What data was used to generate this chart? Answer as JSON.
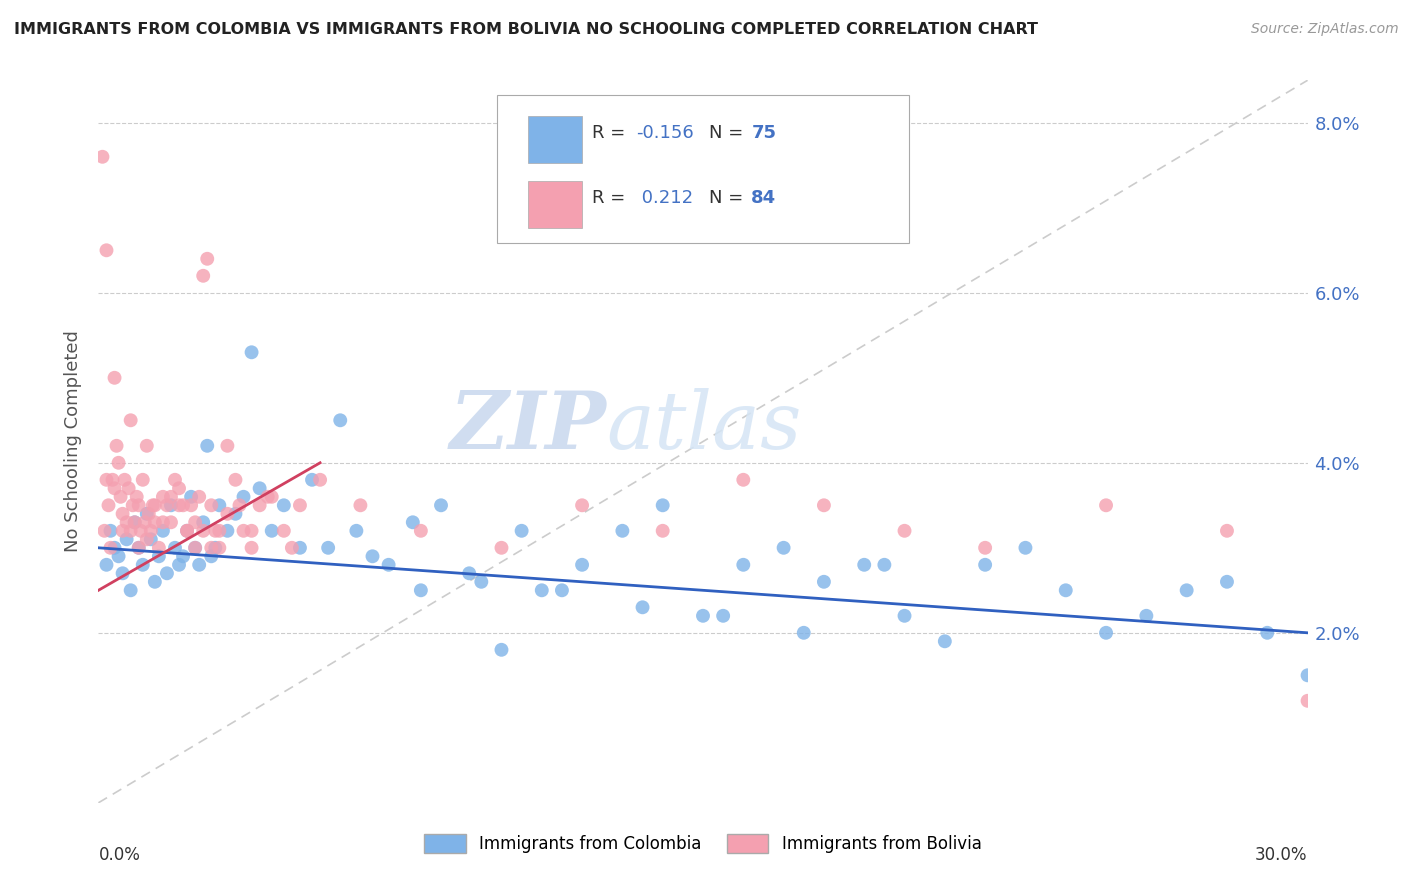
{
  "title": "IMMIGRANTS FROM COLOMBIA VS IMMIGRANTS FROM BOLIVIA NO SCHOOLING COMPLETED CORRELATION CHART",
  "source": "Source: ZipAtlas.com",
  "ylabel": "No Schooling Completed",
  "xlim": [
    0.0,
    30.0
  ],
  "ylim": [
    0.0,
    8.5
  ],
  "yticks": [
    2.0,
    4.0,
    6.0,
    8.0
  ],
  "colombia_color": "#7fb3e8",
  "bolivia_color": "#f4a0b0",
  "colombia_R": -0.156,
  "colombia_N": 75,
  "bolivia_R": 0.212,
  "bolivia_N": 84,
  "trend_color_colombia": "#3060c0",
  "trend_color_bolivia": "#d04060",
  "diagonal_color": "#cccccc",
  "watermark_zip": "ZIP",
  "watermark_atlas": "atlas",
  "legend_label_colombia": "Immigrants from Colombia",
  "legend_label_bolivia": "Immigrants from Bolivia",
  "colombia_x": [
    0.2,
    0.3,
    0.4,
    0.5,
    0.6,
    0.7,
    0.8,
    0.9,
    1.0,
    1.1,
    1.2,
    1.3,
    1.4,
    1.5,
    1.6,
    1.7,
    1.8,
    1.9,
    2.0,
    2.1,
    2.2,
    2.3,
    2.4,
    2.5,
    2.6,
    2.7,
    2.8,
    2.9,
    3.0,
    3.2,
    3.4,
    3.6,
    3.8,
    4.0,
    4.3,
    4.6,
    5.0,
    5.3,
    5.7,
    6.0,
    6.4,
    6.8,
    7.2,
    7.8,
    8.5,
    9.2,
    10.0,
    11.0,
    12.0,
    13.0,
    14.0,
    15.0,
    16.0,
    17.0,
    18.0,
    19.0,
    20.0,
    21.0,
    22.0,
    23.0,
    24.0,
    25.0,
    26.0,
    27.0,
    28.0,
    29.0,
    30.0,
    8.0,
    9.5,
    10.5,
    11.5,
    13.5,
    15.5,
    17.5,
    19.5
  ],
  "colombia_y": [
    2.8,
    3.2,
    3.0,
    2.9,
    2.7,
    3.1,
    2.5,
    3.3,
    3.0,
    2.8,
    3.4,
    3.1,
    2.6,
    2.9,
    3.2,
    2.7,
    3.5,
    3.0,
    2.8,
    2.9,
    3.2,
    3.6,
    3.0,
    2.8,
    3.3,
    4.2,
    2.9,
    3.0,
    3.5,
    3.2,
    3.4,
    3.6,
    5.3,
    3.7,
    3.2,
    3.5,
    3.0,
    3.8,
    3.0,
    4.5,
    3.2,
    2.9,
    2.8,
    3.3,
    3.5,
    2.7,
    1.8,
    2.5,
    2.8,
    3.2,
    3.5,
    2.2,
    2.8,
    3.0,
    2.6,
    2.8,
    2.2,
    1.9,
    2.8,
    3.0,
    2.5,
    2.0,
    2.2,
    2.5,
    2.6,
    2.0,
    1.5,
    2.5,
    2.6,
    3.2,
    2.5,
    2.3,
    2.2,
    2.0,
    2.8
  ],
  "bolivia_x": [
    0.1,
    0.15,
    0.2,
    0.25,
    0.3,
    0.35,
    0.4,
    0.45,
    0.5,
    0.55,
    0.6,
    0.65,
    0.7,
    0.75,
    0.8,
    0.85,
    0.9,
    0.95,
    1.0,
    1.05,
    1.1,
    1.15,
    1.2,
    1.25,
    1.3,
    1.35,
    1.4,
    1.5,
    1.6,
    1.7,
    1.8,
    1.9,
    2.0,
    2.1,
    2.2,
    2.3,
    2.4,
    2.5,
    2.6,
    2.7,
    2.8,
    2.9,
    3.0,
    3.2,
    3.4,
    3.6,
    3.8,
    4.0,
    4.3,
    4.6,
    5.0,
    0.2,
    0.4,
    0.6,
    0.8,
    1.0,
    1.2,
    1.4,
    1.6,
    1.8,
    2.0,
    2.2,
    2.4,
    2.6,
    2.8,
    3.0,
    3.2,
    3.5,
    3.8,
    4.2,
    4.8,
    5.5,
    6.5,
    8.0,
    10.0,
    12.0,
    14.0,
    16.0,
    18.0,
    20.0,
    22.0,
    25.0,
    28.0,
    30.0
  ],
  "bolivia_y": [
    7.6,
    3.2,
    3.8,
    3.5,
    3.0,
    3.8,
    3.7,
    4.2,
    4.0,
    3.6,
    3.4,
    3.8,
    3.3,
    3.7,
    3.2,
    3.5,
    3.3,
    3.6,
    3.5,
    3.2,
    3.8,
    3.3,
    3.1,
    3.4,
    3.2,
    3.5,
    3.3,
    3.0,
    3.6,
    3.5,
    3.3,
    3.8,
    3.7,
    3.5,
    3.2,
    3.5,
    3.3,
    3.6,
    6.2,
    6.4,
    3.5,
    3.2,
    3.0,
    4.2,
    3.8,
    3.2,
    3.0,
    3.5,
    3.6,
    3.2,
    3.5,
    6.5,
    5.0,
    3.2,
    4.5,
    3.0,
    4.2,
    3.5,
    3.3,
    3.6,
    3.5,
    3.2,
    3.0,
    3.2,
    3.0,
    3.2,
    3.4,
    3.5,
    3.2,
    3.6,
    3.0,
    3.8,
    3.5,
    3.2,
    3.0,
    3.5,
    3.2,
    3.8,
    3.5,
    3.2,
    3.0,
    3.5,
    3.2,
    1.2
  ]
}
